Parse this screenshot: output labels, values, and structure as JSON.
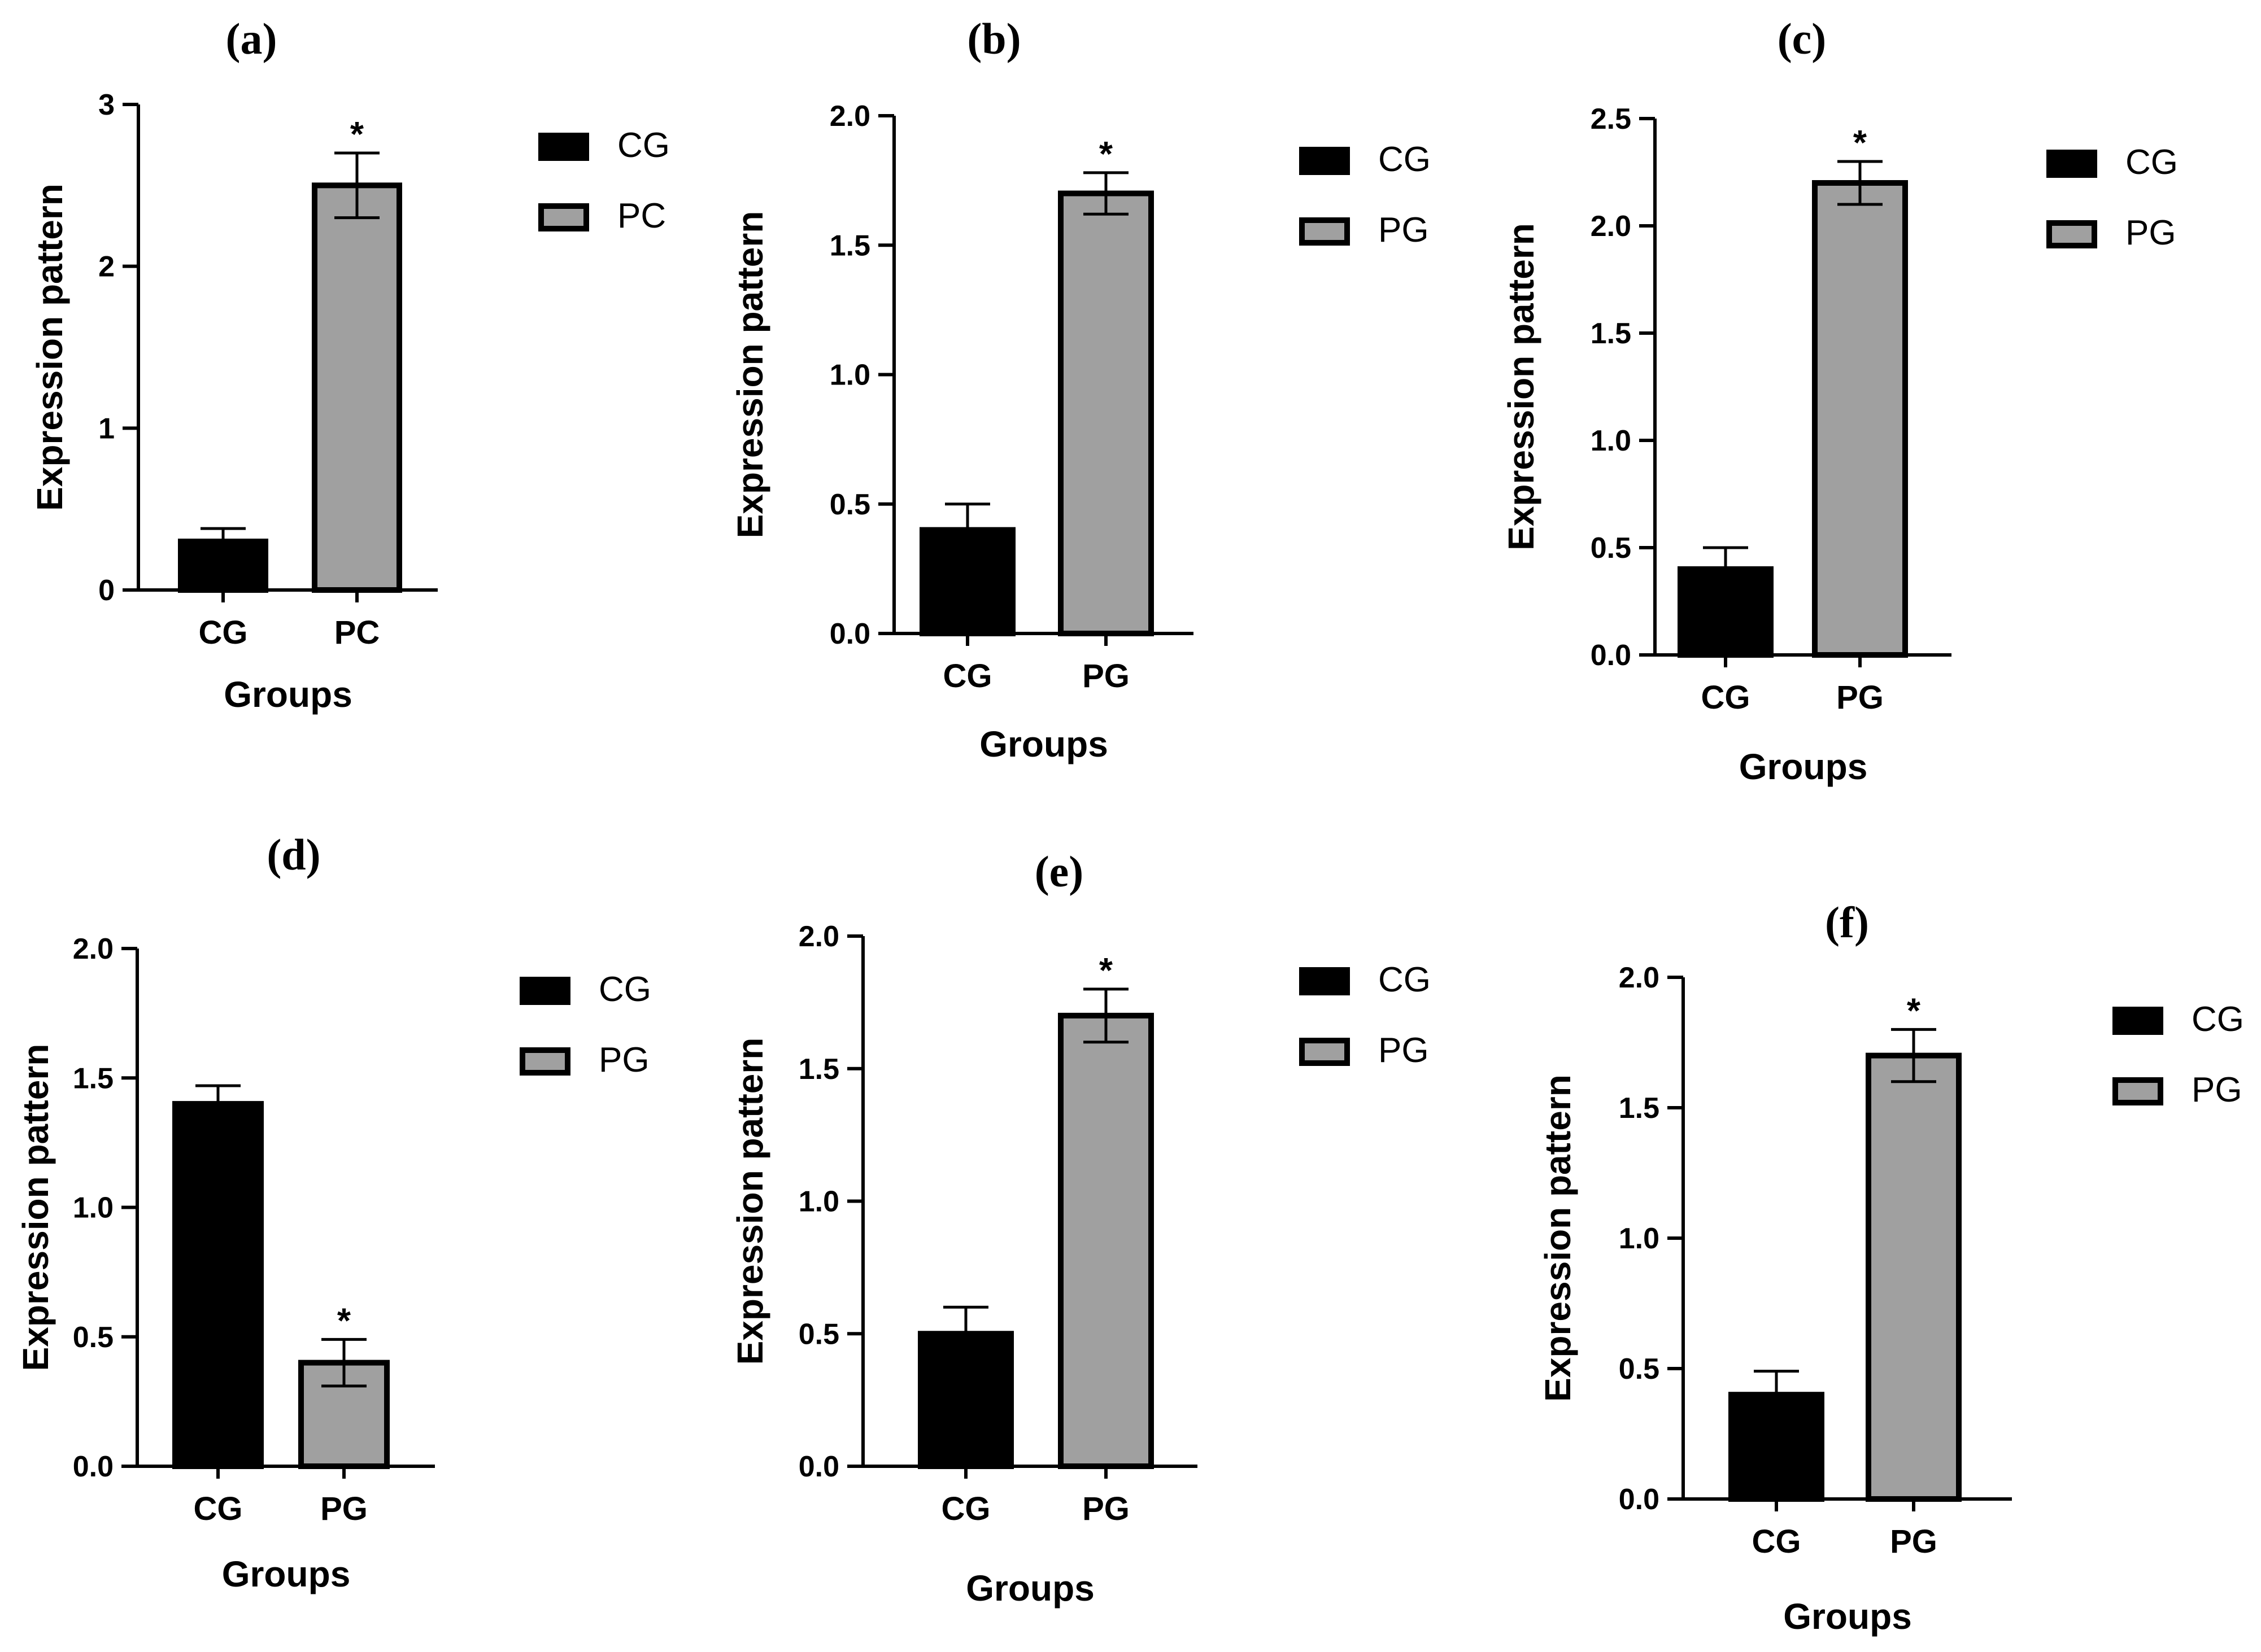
{
  "chart_data": [
    {
      "panel": "(a)",
      "type": "bar",
      "categories": [
        "CG",
        "PC"
      ],
      "values": [
        0.3,
        2.5
      ],
      "errors": [
        0.08,
        0.2
      ],
      "significance": [
        "",
        "*"
      ],
      "colors": [
        "#000000",
        "#a0a0a0"
      ],
      "legend": [
        "CG",
        "PC"
      ],
      "xlabel": "Groups",
      "ylabel": "Expression pattern",
      "ylim": [
        0,
        3
      ],
      "yticks": [
        "0",
        "1",
        "2",
        "3"
      ]
    },
    {
      "panel": "(b)",
      "type": "bar",
      "categories": [
        "CG",
        "PG"
      ],
      "values": [
        0.4,
        1.7
      ],
      "errors": [
        0.1,
        0.08
      ],
      "significance": [
        "",
        "*"
      ],
      "colors": [
        "#000000",
        "#a0a0a0"
      ],
      "legend": [
        "CG",
        "PG"
      ],
      "xlabel": "Groups",
      "ylabel": "Expression pattern",
      "ylim": [
        0,
        2.0
      ],
      "yticks": [
        "0.0",
        "0.5",
        "1.0",
        "1.5",
        "2.0"
      ]
    },
    {
      "panel": "(c)",
      "type": "bar",
      "categories": [
        "CG",
        "PG"
      ],
      "values": [
        0.4,
        2.2
      ],
      "errors": [
        0.1,
        0.1
      ],
      "significance": [
        "",
        "*"
      ],
      "colors": [
        "#000000",
        "#a0a0a0"
      ],
      "legend": [
        "CG",
        "PG"
      ],
      "xlabel": "Groups",
      "ylabel": "Expression pattern",
      "ylim": [
        0,
        2.5
      ],
      "yticks": [
        "0.0",
        "0.5",
        "1.0",
        "1.5",
        "2.0",
        "2.5"
      ]
    },
    {
      "panel": "(d)",
      "type": "bar",
      "categories": [
        "CG",
        "PG"
      ],
      "values": [
        1.4,
        0.4
      ],
      "errors": [
        0.07,
        0.09
      ],
      "significance": [
        "",
        "*"
      ],
      "colors": [
        "#000000",
        "#a0a0a0"
      ],
      "legend": [
        "CG",
        "PG"
      ],
      "xlabel": "Groups",
      "ylabel": "Expression pattern",
      "ylim": [
        0,
        2.0
      ],
      "yticks": [
        "0.0",
        "0.5",
        "1.0",
        "1.5",
        "2.0"
      ]
    },
    {
      "panel": "(e)",
      "type": "bar",
      "categories": [
        "CG",
        "PG"
      ],
      "values": [
        0.5,
        1.7
      ],
      "errors": [
        0.1,
        0.1
      ],
      "significance": [
        "",
        "*"
      ],
      "colors": [
        "#000000",
        "#a0a0a0"
      ],
      "legend": [
        "CG",
        "PG"
      ],
      "xlabel": "Groups",
      "ylabel": "Expression pattern",
      "ylim": [
        0,
        2.0
      ],
      "yticks": [
        "0.0",
        "0.5",
        "1.0",
        "1.5",
        "2.0"
      ]
    },
    {
      "panel": "(f)",
      "type": "bar",
      "categories": [
        "CG",
        "PG"
      ],
      "values": [
        0.4,
        1.7
      ],
      "errors": [
        0.09,
        0.1
      ],
      "significance": [
        "",
        "*"
      ],
      "colors": [
        "#000000",
        "#a0a0a0"
      ],
      "legend": [
        "CG",
        "PG"
      ],
      "xlabel": "Groups",
      "ylabel": "Expression pattern",
      "ylim": [
        0,
        2.0
      ],
      "yticks": [
        "0.0",
        "0.5",
        "1.0",
        "1.5",
        "2.0"
      ]
    }
  ]
}
